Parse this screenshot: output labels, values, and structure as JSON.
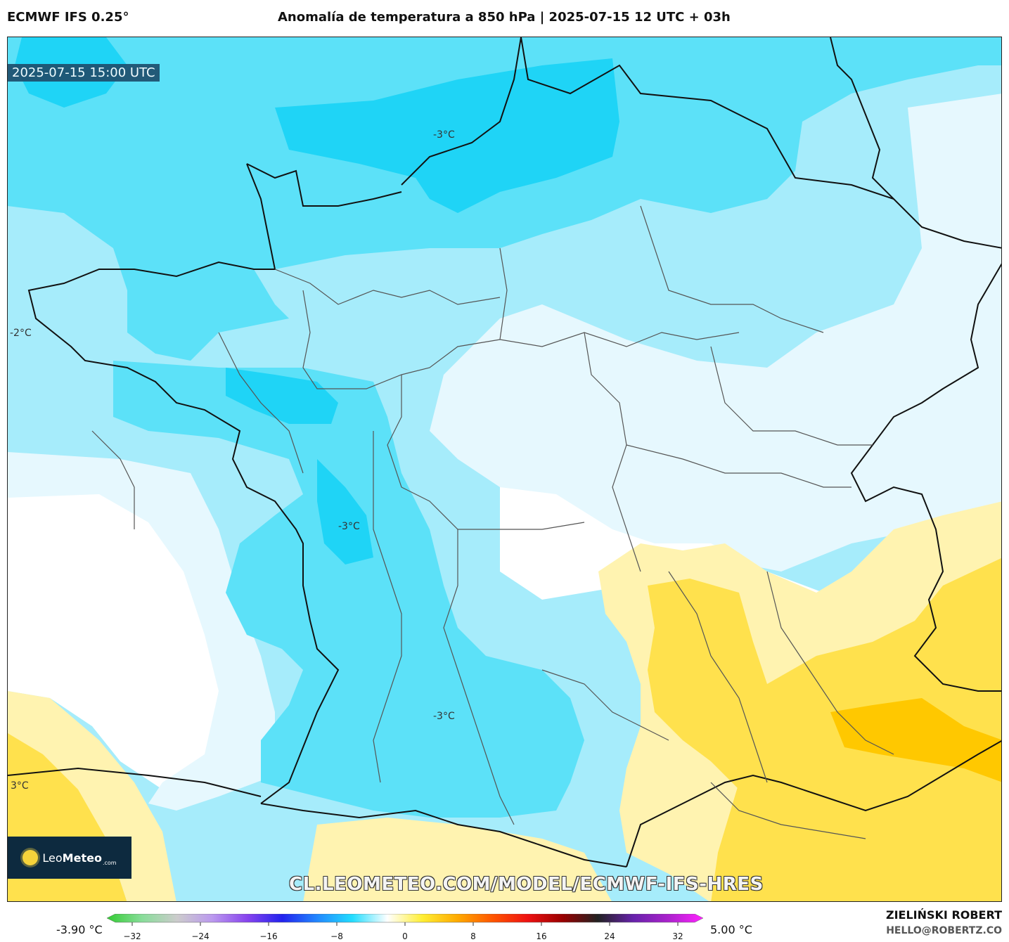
{
  "header": {
    "model": "ECMWF IFS 0.25°",
    "title": "Anomalía de temperatura a 850 hPa | 2025-07-15 12 UTC + 03h"
  },
  "map": {
    "valid_time": "2025-07-15 15:00 UTC",
    "contour_labels": [
      {
        "text": "-3°C"
      },
      {
        "text": "-2°C"
      },
      {
        "text": "-3°C"
      },
      {
        "text": "-3°C"
      },
      {
        "text": "3°C"
      }
    ],
    "logo": {
      "brand_light": "Leo",
      "brand_bold": "Meteo",
      "suffix": ".com"
    },
    "url": "CL.LEOMETEO.COM/MODEL/ECMWF-IFS-HRES",
    "colors": {
      "cold_3": "#1fd4f6",
      "cold_2": "#5ce1f8",
      "cold_1": "#a6ecfb",
      "cold_0": "#e6f8fe",
      "warm_1": "#fff3b0",
      "warm_2": "#ffe14d",
      "warm_3": "#ffc800",
      "border": "#222222"
    }
  },
  "colorbar": {
    "min_label": "-3.90 °C",
    "max_label": "5.00 °C",
    "ticks": [
      "−32",
      "−24",
      "−16",
      "−8",
      "0",
      "8",
      "16",
      "24",
      "32"
    ],
    "stops": [
      "#33cc33",
      "#88dd99",
      "#cccccc",
      "#bb99ee",
      "#8844ee",
      "#2222ee",
      "#2288ff",
      "#22ddff",
      "#ffffff",
      "#ffee33",
      "#ffaa00",
      "#ff5500",
      "#ee1111",
      "#990000",
      "#222222",
      "#6622aa",
      "#aa22cc",
      "#ff22ff"
    ]
  },
  "footer": {
    "author": "ZIELIŃSKI ROBERT",
    "email": "HELLO@ROBERTZ.CO"
  }
}
